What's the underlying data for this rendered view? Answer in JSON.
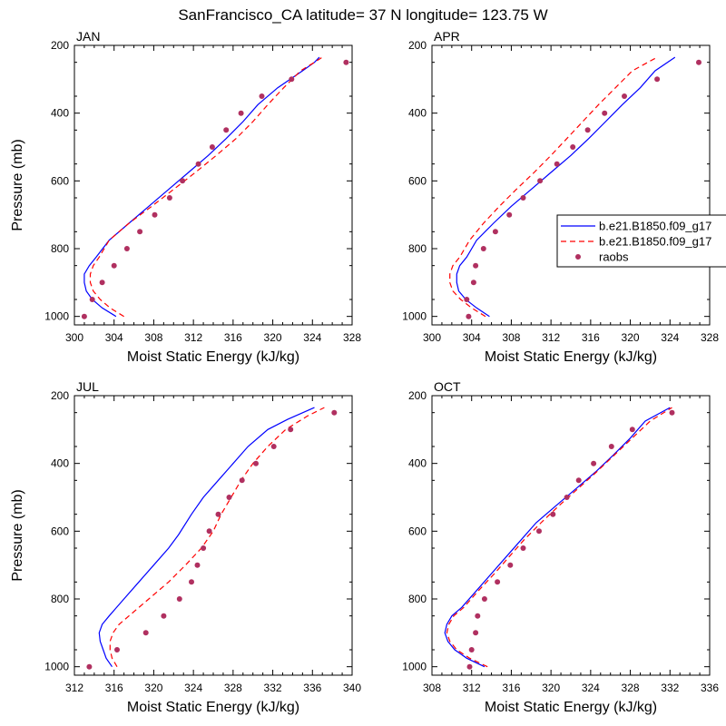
{
  "title": "SanFrancisco_CA  latitude= 37 N longitude= 123.75 W",
  "legend": {
    "placement": "right-of-top-right-panel",
    "entries": [
      {
        "label": "b.e21.B1850.f09_g17",
        "color": "#0000ff",
        "style": "solid"
      },
      {
        "label": "b.e21.B1850.f09_g17",
        "color": "#ff0000",
        "style": "dashed"
      },
      {
        "label": "raobs",
        "color": "#b03060",
        "style": "marker"
      }
    ]
  },
  "chart_data": [
    {
      "type": "line",
      "panel": "JAN",
      "xlabel": "Moist Static Energy (kJ/kg)",
      "ylabel": "Pressure (mb)",
      "xlim": [
        300,
        328
      ],
      "ylim": [
        1025,
        200
      ],
      "xticks": [
        300,
        304,
        308,
        312,
        316,
        320,
        324,
        328
      ],
      "yticks": [
        200,
        400,
        600,
        800,
        1000
      ],
      "series": [
        {
          "values": [
            [
              304.2,
              1000
            ],
            [
              302.8,
              975
            ],
            [
              301.8,
              950
            ],
            [
              301.2,
              925
            ],
            [
              301.0,
              900
            ],
            [
              301.0,
              875
            ],
            [
              301.5,
              850
            ],
            [
              302.2,
              825
            ],
            [
              303.5,
              775
            ],
            [
              305.5,
              725
            ],
            [
              307.5,
              675
            ],
            [
              309.5,
              625
            ],
            [
              311.5,
              575
            ],
            [
              313.5,
              525
            ],
            [
              315.3,
              475
            ],
            [
              317.0,
              425
            ],
            [
              318.5,
              375
            ],
            [
              320.5,
              325
            ],
            [
              323.0,
              275
            ],
            [
              324.2,
              250
            ],
            [
              324.7,
              235
            ]
          ]
        },
        {
          "values": [
            [
              305.0,
              1000
            ],
            [
              303.6,
              975
            ],
            [
              302.6,
              950
            ],
            [
              301.9,
              925
            ],
            [
              301.6,
              900
            ],
            [
              301.6,
              875
            ],
            [
              301.9,
              850
            ],
            [
              302.5,
              825
            ],
            [
              303.5,
              775
            ],
            [
              305.5,
              725
            ],
            [
              307.8,
              675
            ],
            [
              310.0,
              625
            ],
            [
              312.2,
              575
            ],
            [
              314.3,
              525
            ],
            [
              316.3,
              475
            ],
            [
              318.0,
              425
            ],
            [
              319.5,
              375
            ],
            [
              321.1,
              325
            ],
            [
              322.8,
              275
            ],
            [
              324.2,
              250
            ],
            [
              325.0,
              235
            ]
          ]
        },
        {
          "values": [
            [
              301.0,
              1000
            ],
            [
              301.8,
              950
            ],
            [
              302.8,
              900
            ],
            [
              304.0,
              850
            ],
            [
              305.3,
              800
            ],
            [
              306.6,
              750
            ],
            [
              308.1,
              700
            ],
            [
              309.6,
              650
            ],
            [
              310.9,
              600
            ],
            [
              312.5,
              550
            ],
            [
              313.9,
              500
            ],
            [
              315.3,
              450
            ],
            [
              316.8,
              400
            ],
            [
              318.9,
              350
            ],
            [
              321.9,
              300
            ],
            [
              327.4,
              250
            ]
          ]
        }
      ]
    },
    {
      "type": "line",
      "panel": "APR",
      "xlabel": "Moist Static Energy (kJ/kg)",
      "ylabel": "",
      "xlim": [
        300,
        328
      ],
      "ylim": [
        1025,
        200
      ],
      "xticks": [
        300,
        304,
        308,
        312,
        316,
        320,
        324,
        328
      ],
      "yticks": [
        200,
        400,
        600,
        800,
        1000
      ],
      "series": [
        {
          "values": [
            [
              305.8,
              1000
            ],
            [
              304.5,
              975
            ],
            [
              303.4,
              950
            ],
            [
              302.7,
              925
            ],
            [
              302.5,
              900
            ],
            [
              302.5,
              875
            ],
            [
              302.8,
              850
            ],
            [
              303.5,
              825
            ],
            [
              304.5,
              775
            ],
            [
              306.2,
              725
            ],
            [
              308.0,
              675
            ],
            [
              310.0,
              625
            ],
            [
              312.0,
              575
            ],
            [
              314.0,
              525
            ],
            [
              315.8,
              475
            ],
            [
              317.5,
              425
            ],
            [
              319.2,
              375
            ],
            [
              321.0,
              325
            ],
            [
              322.5,
              275
            ],
            [
              324.5,
              235
            ]
          ]
        },
        {
          "values": [
            [
              305.4,
              1000
            ],
            [
              304.0,
              975
            ],
            [
              302.9,
              950
            ],
            [
              302.1,
              925
            ],
            [
              301.8,
              900
            ],
            [
              301.8,
              875
            ],
            [
              302.1,
              850
            ],
            [
              302.8,
              825
            ],
            [
              303.8,
              775
            ],
            [
              305.2,
              725
            ],
            [
              306.8,
              675
            ],
            [
              308.5,
              625
            ],
            [
              310.3,
              575
            ],
            [
              312.0,
              525
            ],
            [
              313.6,
              475
            ],
            [
              315.2,
              425
            ],
            [
              316.8,
              375
            ],
            [
              318.5,
              325
            ],
            [
              320.2,
              275
            ],
            [
              322.7,
              235
            ]
          ]
        },
        {
          "values": [
            [
              303.7,
              1000
            ],
            [
              303.5,
              950
            ],
            [
              304.2,
              900
            ],
            [
              304.4,
              850
            ],
            [
              305.2,
              800
            ],
            [
              306.4,
              750
            ],
            [
              307.8,
              700
            ],
            [
              309.2,
              650
            ],
            [
              310.9,
              600
            ],
            [
              312.6,
              550
            ],
            [
              314.2,
              500
            ],
            [
              315.7,
              450
            ],
            [
              317.4,
              400
            ],
            [
              319.4,
              350
            ],
            [
              322.7,
              300
            ],
            [
              326.9,
              250
            ]
          ]
        }
      ]
    },
    {
      "type": "line",
      "panel": "JUL",
      "xlabel": "Moist Static Energy (kJ/kg)",
      "ylabel": "Pressure (mb)",
      "xlim": [
        312,
        340
      ],
      "ylim": [
        1025,
        200
      ],
      "xticks": [
        312,
        316,
        320,
        324,
        328,
        332,
        336,
        340
      ],
      "yticks": [
        200,
        400,
        600,
        800,
        1000
      ],
      "series": [
        {
          "values": [
            [
              315.8,
              1000
            ],
            [
              315.2,
              975
            ],
            [
              314.9,
              950
            ],
            [
              314.6,
              925
            ],
            [
              314.5,
              900
            ],
            [
              314.8,
              875
            ],
            [
              315.5,
              850
            ],
            [
              317.0,
              800
            ],
            [
              318.5,
              750
            ],
            [
              320.0,
              700
            ],
            [
              321.5,
              650
            ],
            [
              322.5,
              610
            ],
            [
              323.8,
              550
            ],
            [
              325.0,
              500
            ],
            [
              326.5,
              450
            ],
            [
              328.0,
              400
            ],
            [
              329.5,
              350
            ],
            [
              331.5,
              300
            ],
            [
              333.5,
              270
            ],
            [
              336.2,
              235
            ]
          ]
        },
        {
          "values": [
            [
              316.3,
              1000
            ],
            [
              315.8,
              975
            ],
            [
              315.6,
              950
            ],
            [
              315.6,
              925
            ],
            [
              315.9,
              900
            ],
            [
              316.5,
              875
            ],
            [
              317.5,
              850
            ],
            [
              319.5,
              800
            ],
            [
              321.5,
              750
            ],
            [
              323.2,
              700
            ],
            [
              324.8,
              650
            ],
            [
              326.0,
              600
            ],
            [
              326.8,
              550
            ],
            [
              327.8,
              500
            ],
            [
              328.8,
              450
            ],
            [
              330.0,
              400
            ],
            [
              331.5,
              350
            ],
            [
              333.3,
              300
            ],
            [
              335.5,
              260
            ],
            [
              337.2,
              235
            ]
          ]
        },
        {
          "values": [
            [
              313.5,
              1000
            ],
            [
              316.3,
              950
            ],
            [
              319.2,
              900
            ],
            [
              321.0,
              850
            ],
            [
              322.6,
              800
            ],
            [
              323.8,
              750
            ],
            [
              324.4,
              700
            ],
            [
              325.0,
              650
            ],
            [
              325.6,
              600
            ],
            [
              326.5,
              550
            ],
            [
              327.6,
              500
            ],
            [
              328.9,
              450
            ],
            [
              330.3,
              400
            ],
            [
              332.1,
              350
            ],
            [
              333.8,
              300
            ],
            [
              338.2,
              250
            ]
          ]
        }
      ]
    },
    {
      "type": "line",
      "panel": "OCT",
      "xlabel": "Moist Static Energy (kJ/kg)",
      "ylabel": "",
      "xlim": [
        308,
        336
      ],
      "ylim": [
        1025,
        200
      ],
      "xticks": [
        308,
        312,
        316,
        320,
        324,
        328,
        332,
        336
      ],
      "yticks": [
        200,
        400,
        600,
        800,
        1000
      ],
      "series": [
        {
          "values": [
            [
              313.3,
              1000
            ],
            [
              311.5,
              975
            ],
            [
              310.3,
              950
            ],
            [
              309.6,
              925
            ],
            [
              309.3,
              900
            ],
            [
              309.5,
              875
            ],
            [
              310.0,
              850
            ],
            [
              311.0,
              825
            ],
            [
              312.5,
              775
            ],
            [
              314.0,
              725
            ],
            [
              315.5,
              675
            ],
            [
              317.0,
              625
            ],
            [
              318.5,
              575
            ],
            [
              320.5,
              525
            ],
            [
              322.5,
              475
            ],
            [
              324.5,
              425
            ],
            [
              326.3,
              375
            ],
            [
              328.0,
              325
            ],
            [
              329.5,
              275
            ],
            [
              332.0,
              235
            ]
          ]
        },
        {
          "values": [
            [
              313.6,
              1000
            ],
            [
              311.8,
              975
            ],
            [
              310.5,
              950
            ],
            [
              309.8,
              925
            ],
            [
              309.5,
              900
            ],
            [
              309.7,
              875
            ],
            [
              310.2,
              850
            ],
            [
              311.2,
              825
            ],
            [
              312.7,
              775
            ],
            [
              314.3,
              725
            ],
            [
              315.8,
              675
            ],
            [
              317.3,
              625
            ],
            [
              319.0,
              575
            ],
            [
              320.8,
              525
            ],
            [
              322.7,
              475
            ],
            [
              324.6,
              425
            ],
            [
              326.4,
              375
            ],
            [
              328.2,
              325
            ],
            [
              330.0,
              275
            ],
            [
              332.2,
              235
            ]
          ]
        },
        {
          "values": [
            [
              311.8,
              1000
            ],
            [
              312.0,
              950
            ],
            [
              312.4,
              900
            ],
            [
              312.6,
              850
            ],
            [
              313.3,
              800
            ],
            [
              314.6,
              750
            ],
            [
              315.9,
              700
            ],
            [
              317.2,
              650
            ],
            [
              318.8,
              600
            ],
            [
              320.2,
              550
            ],
            [
              321.6,
              500
            ],
            [
              322.8,
              450
            ],
            [
              324.3,
              400
            ],
            [
              326.1,
              350
            ],
            [
              328.2,
              300
            ],
            [
              332.2,
              250
            ]
          ]
        }
      ]
    }
  ]
}
